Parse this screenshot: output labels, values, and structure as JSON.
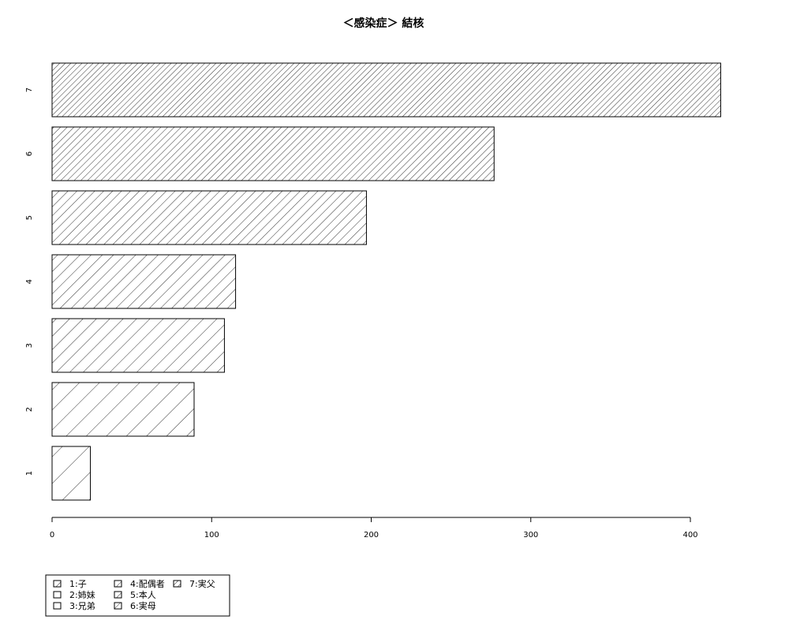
{
  "chart_data": {
    "type": "bar",
    "orientation": "horizontal",
    "title": "＜感染症＞ 結核",
    "xlabel": "",
    "ylabel": "",
    "categories": [
      "1",
      "2",
      "3",
      "4",
      "5",
      "6",
      "7"
    ],
    "values": [
      24,
      89,
      108,
      115,
      197,
      277,
      419
    ],
    "xlim": [
      0,
      420
    ],
    "xticks": [
      0,
      100,
      200,
      300,
      400
    ],
    "fill_style": "diagonal hatch, density increasing with category",
    "colors": {
      "stroke": "#000000",
      "background": "#ffffff"
    },
    "grid": false,
    "legend": {
      "position": "bottom-left",
      "entries": [
        "1:子",
        "2:姉妹",
        "3:兄弟",
        "4:配偶者",
        "5:本人",
        "6:実母",
        "7:実父"
      ]
    }
  }
}
